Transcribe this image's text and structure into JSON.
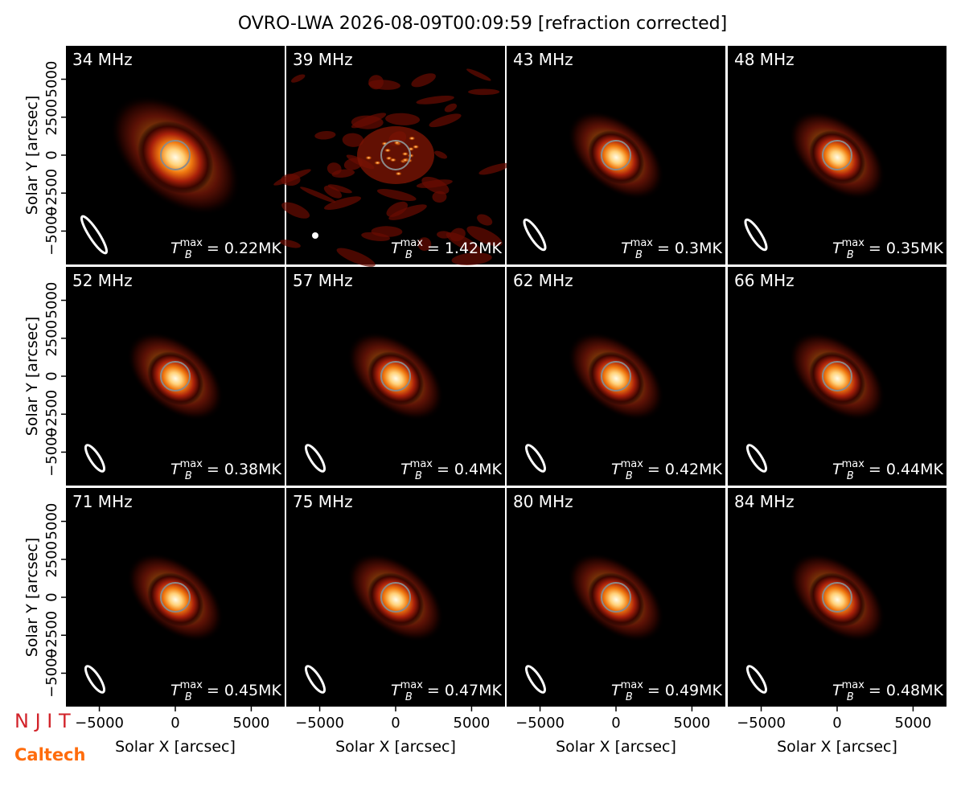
{
  "title": "OVRO-LWA 2026-08-09T00:09:59 [refraction corrected]",
  "xlabel": "Solar X [arcsec]",
  "ylabel": "Solar Y [arcsec]",
  "xlim": [
    -7200,
    7200
  ],
  "ylim": [
    -7200,
    7200
  ],
  "xticks": [
    {
      "value": -5000,
      "label": "−5000"
    },
    0,
    5000
  ],
  "yticks": [
    {
      "value": -5000,
      "label": "−5000"
    },
    {
      "value": -2500,
      "label": "−2500"
    },
    0,
    2500,
    5000
  ],
  "tb_symbol": {
    "symbol": "T",
    "sub": "B",
    "sup": "max",
    "eq": " = "
  },
  "panels": [
    {
      "label": "34 MHz",
      "tb": "0.22MK"
    },
    {
      "label": "39 MHz",
      "tb": "1.42MK"
    },
    {
      "label": "43 MHz",
      "tb": "0.3MK"
    },
    {
      "label": "48 MHz",
      "tb": "0.35MK"
    },
    {
      "label": "52 MHz",
      "tb": "0.38MK"
    },
    {
      "label": "57 MHz",
      "tb": "0.4MK"
    },
    {
      "label": "62 MHz",
      "tb": "0.42MK"
    },
    {
      "label": "66 MHz",
      "tb": "0.44MK"
    },
    {
      "label": "71 MHz",
      "tb": "0.45MK"
    },
    {
      "label": "75 MHz",
      "tb": "0.47MK"
    },
    {
      "label": "80 MHz",
      "tb": "0.49MK"
    },
    {
      "label": "84 MHz",
      "tb": "0.48MK"
    }
  ],
  "logos": {
    "njit": "N J I T",
    "caltech": "Caltech"
  }
}
